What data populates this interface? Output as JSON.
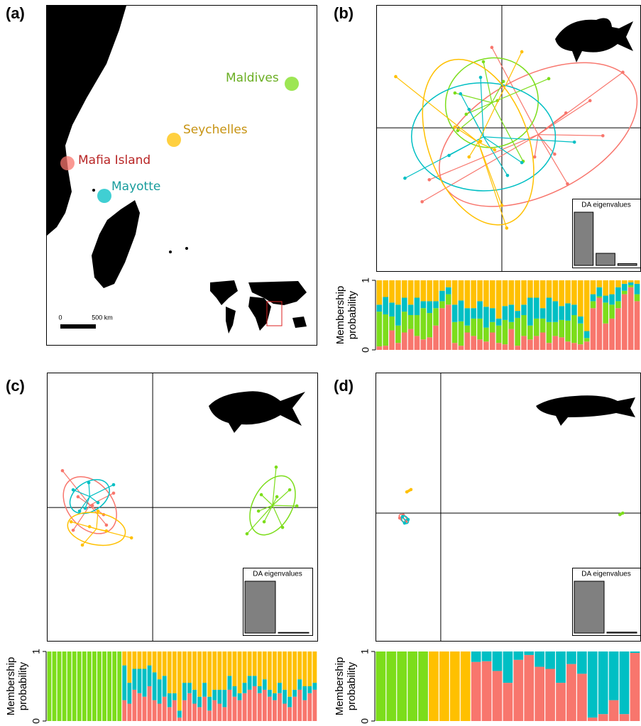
{
  "panel_labels": [
    "(a)",
    "(b)",
    "(c)",
    "(d)"
  ],
  "map": {
    "places": [
      "Maldives",
      "Seychelles",
      "Mafia Island",
      "Mayotte"
    ],
    "scale_labels": [
      "0",
      "500 km"
    ]
  },
  "chart_data": [
    {
      "type": "scatter",
      "xlim": [
        -4.9,
        5.4
      ],
      "ylim": [
        -5.6,
        4.8
      ],
      "series": [
        {
          "color": "#F8766D",
          "x": [
            4.72,
            3.44,
            3.94,
            2.5,
            1.28,
            2.06,
            -0.39,
            -2.83,
            -3.11,
            2.56
          ],
          "values": [
            2.17,
            1.06,
            -0.31,
            0.58,
            -1.14,
            -1.03,
            3.14,
            -2.03,
            -2.89,
            -2.19
          ]
        },
        {
          "color": "#7CDD1B",
          "x": [
            -0.72,
            1.83,
            -1.83,
            0.06,
            0.83,
            -1.72,
            -1.39,
            -0.17
          ],
          "values": [
            2.58,
            1.92,
            1.36,
            1.81,
            -1.31,
            -0.11,
            0.53,
            1.06
          ]
        },
        {
          "color": "#00BFC4",
          "x": [
            -3.78,
            -2.06,
            -1.61,
            -0.83,
            0.22,
            0.78,
            2.83,
            -1.28
          ],
          "values": [
            -1.97,
            -1.08,
            1.33,
            1.97,
            -1.86,
            -1.36,
            -0.56,
            0.72
          ]
        },
        {
          "color": "#FFC000",
          "x": [
            -4.14,
            0.78,
            0.19,
            0,
            -1.28,
            -1.83,
            -0.28,
            -0.83
          ],
          "values": [
            2,
            2.97,
            -3.92,
            -3.03,
            -1.14,
            0.03,
            -0.86,
            -0.53
          ]
        }
      ]
    },
    {
      "type": "bar",
      "title": "DA eigenvalues",
      "values": [
        88,
        20,
        3
      ]
    },
    {
      "type": "stacked_bar",
      "ylabel": [
        "Membership",
        "probability"
      ],
      "ylim": [
        0,
        1
      ],
      "yticks": [
        0,
        1
      ],
      "series": [
        {
          "color": "#F8766D",
          "values": [
            0.05,
            0.06,
            0.28,
            0.1,
            0.25,
            0.3,
            0.2,
            0.15,
            0.18,
            0.35,
            0.6,
            0.65,
            0.1,
            0.06,
            0.25,
            0.2,
            0.15,
            0.12,
            0.25,
            0.1,
            0.08,
            0.3,
            0.06,
            0.2,
            0.15,
            0.2,
            0.25,
            0.1,
            0.2,
            0.18,
            0.12,
            0.1,
            0.08,
            0.12,
            0.6,
            0.75,
            0.38,
            0.45,
            0.6,
            0.8,
            0.9,
            0.7
          ]
        },
        {
          "color": "#7CDD1B",
          "values": [
            0.5,
            0.45,
            0.2,
            0.25,
            0.3,
            0.2,
            0.3,
            0.45,
            0.35,
            0.25,
            0.1,
            0.15,
            0.3,
            0.35,
            0.1,
            0.25,
            0.3,
            0.2,
            0.15,
            0.25,
            0.35,
            0.1,
            0.4,
            0.3,
            0.2,
            0.25,
            0.2,
            0.3,
            0.2,
            0.25,
            0.3,
            0.4,
            0.3,
            0.05,
            0.1,
            0.02,
            0.3,
            0.2,
            0.1,
            0.05,
            0.03,
            0.1
          ]
        },
        {
          "color": "#00BFC4",
          "values": [
            0.1,
            0.25,
            0.2,
            0.3,
            0.2,
            0.15,
            0.25,
            0.1,
            0.17,
            0.1,
            0.15,
            0.1,
            0.25,
            0.3,
            0.25,
            0.15,
            0.25,
            0.3,
            0.2,
            0.1,
            0.2,
            0.25,
            0.1,
            0.15,
            0.4,
            0.3,
            0.15,
            0.35,
            0.3,
            0.2,
            0.25,
            0.15,
            0.1,
            0.1,
            0.1,
            0.13,
            0.1,
            0.15,
            0.2,
            0.1,
            0.04,
            0.15
          ]
        },
        {
          "color": "#FFC000",
          "values": [
            0.35,
            0.24,
            0.32,
            0.35,
            0.25,
            0.35,
            0.25,
            0.3,
            0.3,
            0.3,
            0.15,
            0.1,
            0.35,
            0.29,
            0.4,
            0.4,
            0.3,
            0.38,
            0.4,
            0.55,
            0.37,
            0.35,
            0.44,
            0.35,
            0.25,
            0.25,
            0.4,
            0.25,
            0.3,
            0.37,
            0.33,
            0.35,
            0.52,
            0.73,
            0.2,
            0.1,
            0.22,
            0.2,
            0.1,
            0.05,
            0.03,
            0.05
          ]
        }
      ]
    },
    {
      "type": "scatter",
      "xlim": [
        -4.14,
        6.44
      ],
      "ylim": [
        -5.22,
        5.28
      ],
      "series": [
        {
          "color": "#F8766D",
          "x": [
            -3.53,
            -3.11,
            -1.53,
            -1.92,
            -2.92,
            -2.36,
            -1.81
          ],
          "values": [
            1.44,
            -0.89,
            0.56,
            -0.28,
            0.42,
            0.08,
            -0.69
          ]
        },
        {
          "color": "#7CDD1B",
          "x": [
            4.83,
            5.64,
            3.69,
            5.08,
            4.25,
            5.36,
            4.36,
            4.86,
            4.14
          ],
          "values": [
            1.58,
            0.06,
            -1.03,
            -0.78,
            0.5,
            0.69,
            -0.56,
            0.42,
            -0.14
          ]
        },
        {
          "color": "#00BFC4",
          "x": [
            -3.11,
            -2.5,
            -1.53,
            -2.86,
            -2.14,
            -2.64
          ],
          "values": [
            0.69,
            0.97,
            0.89,
            -0.14,
            0.19,
            -0.03
          ]
        },
        {
          "color": "#FFC000",
          "x": [
            -2.75,
            -0.83,
            -3.19,
            -1.81,
            -2.14,
            -2.47
          ],
          "values": [
            -1.47,
            -1.19,
            -0.56,
            -0.92,
            -0.14,
            -0.75
          ]
        }
      ]
    },
    {
      "type": "bar",
      "title": "DA eigenvalues",
      "values": [
        88,
        1
      ]
    },
    {
      "type": "stacked_bar",
      "ylabel": [
        "Membership",
        "probability"
      ],
      "ylim": [
        0,
        1
      ],
      "yticks": [
        0,
        1
      ],
      "series": [
        {
          "color": "#F8766D",
          "values": [
            0,
            0,
            0,
            0,
            0,
            0,
            0,
            0,
            0,
            0,
            0,
            0,
            0,
            0,
            0,
            0.3,
            0.25,
            0.45,
            0.4,
            0.35,
            0.5,
            0.3,
            0.25,
            0.35,
            0.2,
            0.3,
            0.05,
            0.3,
            0.4,
            0.25,
            0.2,
            0.35,
            0.15,
            0.3,
            0.25,
            0.2,
            0.45,
            0.35,
            0.3,
            0.4,
            0.45,
            0.5,
            0.4,
            0.45,
            0.35,
            0.3,
            0.4,
            0.25,
            0.2,
            0.35,
            0.45,
            0.3,
            0.4,
            0.45
          ]
        },
        {
          "color": "#7CDD1B",
          "values": [
            1,
            1,
            1,
            1,
            1,
            1,
            1,
            1,
            1,
            1,
            1,
            1,
            1,
            1,
            1,
            0,
            0,
            0,
            0,
            0,
            0,
            0,
            0,
            0,
            0,
            0,
            0,
            0,
            0,
            0,
            0,
            0,
            0,
            0,
            0,
            0,
            0,
            0,
            0,
            0,
            0,
            0,
            0,
            0,
            0,
            0,
            0,
            0,
            0,
            0,
            0,
            0,
            0,
            0
          ]
        },
        {
          "color": "#00BFC4",
          "values": [
            0,
            0,
            0,
            0,
            0,
            0,
            0,
            0,
            0,
            0,
            0,
            0,
            0,
            0,
            0,
            0.5,
            0.3,
            0.3,
            0.35,
            0.4,
            0.3,
            0.4,
            0.35,
            0.3,
            0.2,
            0.1,
            0.1,
            0.25,
            0.15,
            0.2,
            0.15,
            0.2,
            0.2,
            0.15,
            0.2,
            0.25,
            0.2,
            0.15,
            0.1,
            0.15,
            0.2,
            0.15,
            0.1,
            0.15,
            0.1,
            0.1,
            0.15,
            0.2,
            0.15,
            0.1,
            0.15,
            0.2,
            0.1,
            0.1
          ]
        },
        {
          "color": "#FFC000",
          "values": [
            0,
            0,
            0,
            0,
            0,
            0,
            0,
            0,
            0,
            0,
            0,
            0,
            0,
            0,
            0,
            0.2,
            0.45,
            0.25,
            0.25,
            0.25,
            0.2,
            0.3,
            0.4,
            0.35,
            0.6,
            0.6,
            0.85,
            0.45,
            0.45,
            0.55,
            0.65,
            0.45,
            0.65,
            0.55,
            0.55,
            0.55,
            0.35,
            0.5,
            0.6,
            0.45,
            0.35,
            0.35,
            0.5,
            0.4,
            0.55,
            0.6,
            0.45,
            0.55,
            0.65,
            0.55,
            0.4,
            0.5,
            0.5,
            0.45
          ]
        }
      ]
    },
    {
      "type": "scatter",
      "xlim": [
        -2.56,
        7.83
      ],
      "ylim": [
        -5,
        5.5
      ],
      "series": [
        {
          "color": "#F8766D",
          "x": [
            -1.61,
            -1.47,
            -1.36
          ],
          "values": [
            -0.19,
            -0.08,
            -0.33
          ]
        },
        {
          "color": "#7CDD1B",
          "x": [
            7.03,
            7.14
          ],
          "values": [
            -0.06,
            0
          ]
        },
        {
          "color": "#00BFC4",
          "x": [
            -1.5,
            -1.28,
            -1.42
          ],
          "values": [
            -0.14,
            -0.25,
            -0.39
          ]
        },
        {
          "color": "#FFC000",
          "x": [
            -1.33,
            -1.17
          ],
          "values": [
            0.83,
            0.92
          ]
        }
      ]
    },
    {
      "type": "bar",
      "title": "DA eigenvalues",
      "values": [
        88,
        1.5
      ]
    },
    {
      "type": "stacked_bar",
      "ylabel": [
        "Membership",
        "probability"
      ],
      "ylim": [
        0,
        1
      ],
      "yticks": [
        0,
        1
      ],
      "series": [
        {
          "color": "#F8766D",
          "values": [
            0,
            0,
            0,
            0,
            0,
            0,
            0,
            0,
            0,
            0.85,
            0.86,
            0.72,
            0.55,
            0.88,
            0.95,
            0.78,
            0.75,
            0.55,
            0.82,
            0.68,
            0.05,
            0.1,
            0.3,
            0.1,
            0.98
          ]
        },
        {
          "color": "#7CDD1B",
          "values": [
            1,
            1,
            1,
            1,
            1,
            0,
            0,
            0,
            0,
            0,
            0,
            0,
            0,
            0,
            0,
            0,
            0,
            0,
            0,
            0,
            0,
            0,
            0,
            0,
            0
          ]
        },
        {
          "color": "#00BFC4",
          "values": [
            0,
            0,
            0,
            0,
            0,
            0,
            0,
            0,
            0,
            0.15,
            0.14,
            0.28,
            0.45,
            0.12,
            0.05,
            0.22,
            0.25,
            0.45,
            0.18,
            0.32,
            0.95,
            0.9,
            0.7,
            0.9,
            0.02
          ]
        },
        {
          "color": "#FFC000",
          "values": [
            0,
            0,
            0,
            0,
            0,
            1,
            1,
            1,
            1,
            0,
            0,
            0,
            0,
            0,
            0,
            0,
            0,
            0,
            0,
            0,
            0,
            0,
            0,
            0,
            0
          ]
        }
      ]
    }
  ]
}
